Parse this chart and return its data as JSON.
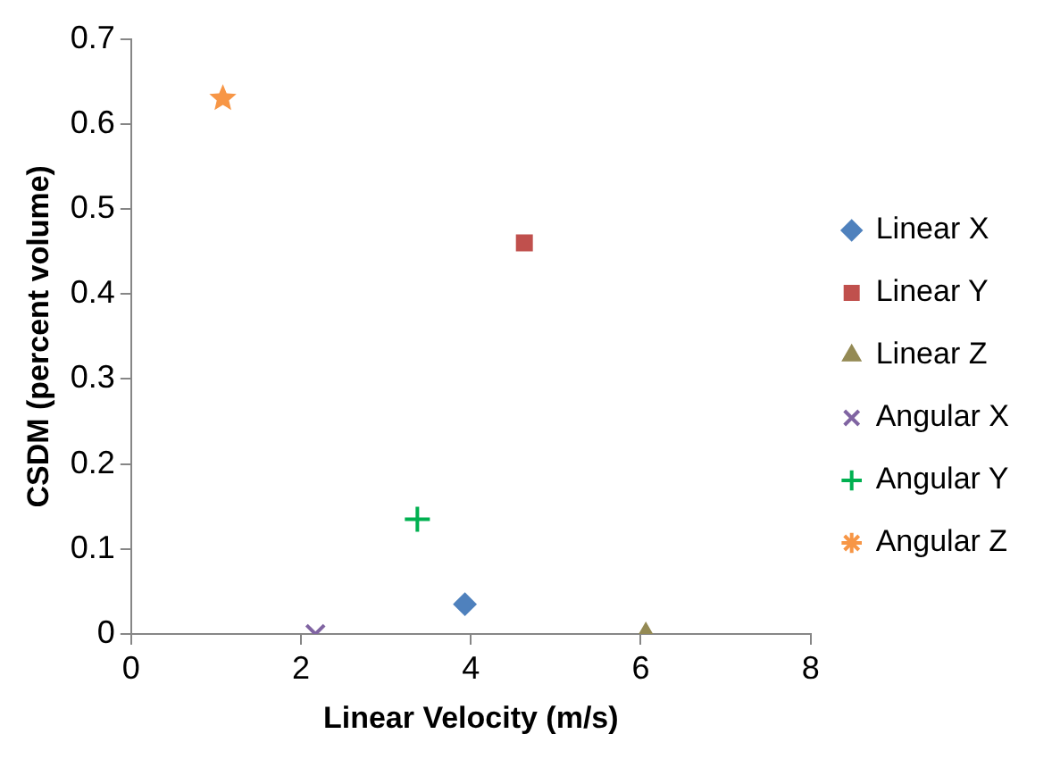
{
  "chart_data": {
    "type": "scatter",
    "xlabel": "Linear Velocity (m/s)",
    "ylabel": "CSDM (percent volume)",
    "xlim": [
      0,
      8
    ],
    "xticks": [
      0,
      2,
      4,
      6,
      8
    ],
    "ylim": [
      0,
      0.7
    ],
    "yticks": [
      0,
      0.1,
      0.2,
      0.3,
      0.4,
      0.5,
      0.6,
      0.7
    ],
    "grid": false,
    "legend": "right",
    "series": [
      {
        "name": "Linear X",
        "color": "#4f81bd",
        "marker": "diamond",
        "x": [
          3.93
        ],
        "values": [
          0.035
        ]
      },
      {
        "name": "Linear Y",
        "color": "#c0504d",
        "marker": "square",
        "x": [
          4.63
        ],
        "values": [
          0.46
        ]
      },
      {
        "name": "Linear Z",
        "color": "#948a54",
        "marker": "triangle",
        "x": [
          6.06
        ],
        "values": [
          0
        ]
      },
      {
        "name": "Angular X",
        "color": "#8064a2",
        "marker": "cross",
        "x": [
          2.17
        ],
        "values": [
          0
        ]
      },
      {
        "name": "Angular Y",
        "color": "#00b050",
        "marker": "plus",
        "x": [
          3.37
        ],
        "values": [
          0.135
        ]
      },
      {
        "name": "Angular Z",
        "color": "#f79646",
        "marker": "star",
        "x": [
          1.08
        ],
        "values": [
          0.63
        ]
      }
    ]
  }
}
